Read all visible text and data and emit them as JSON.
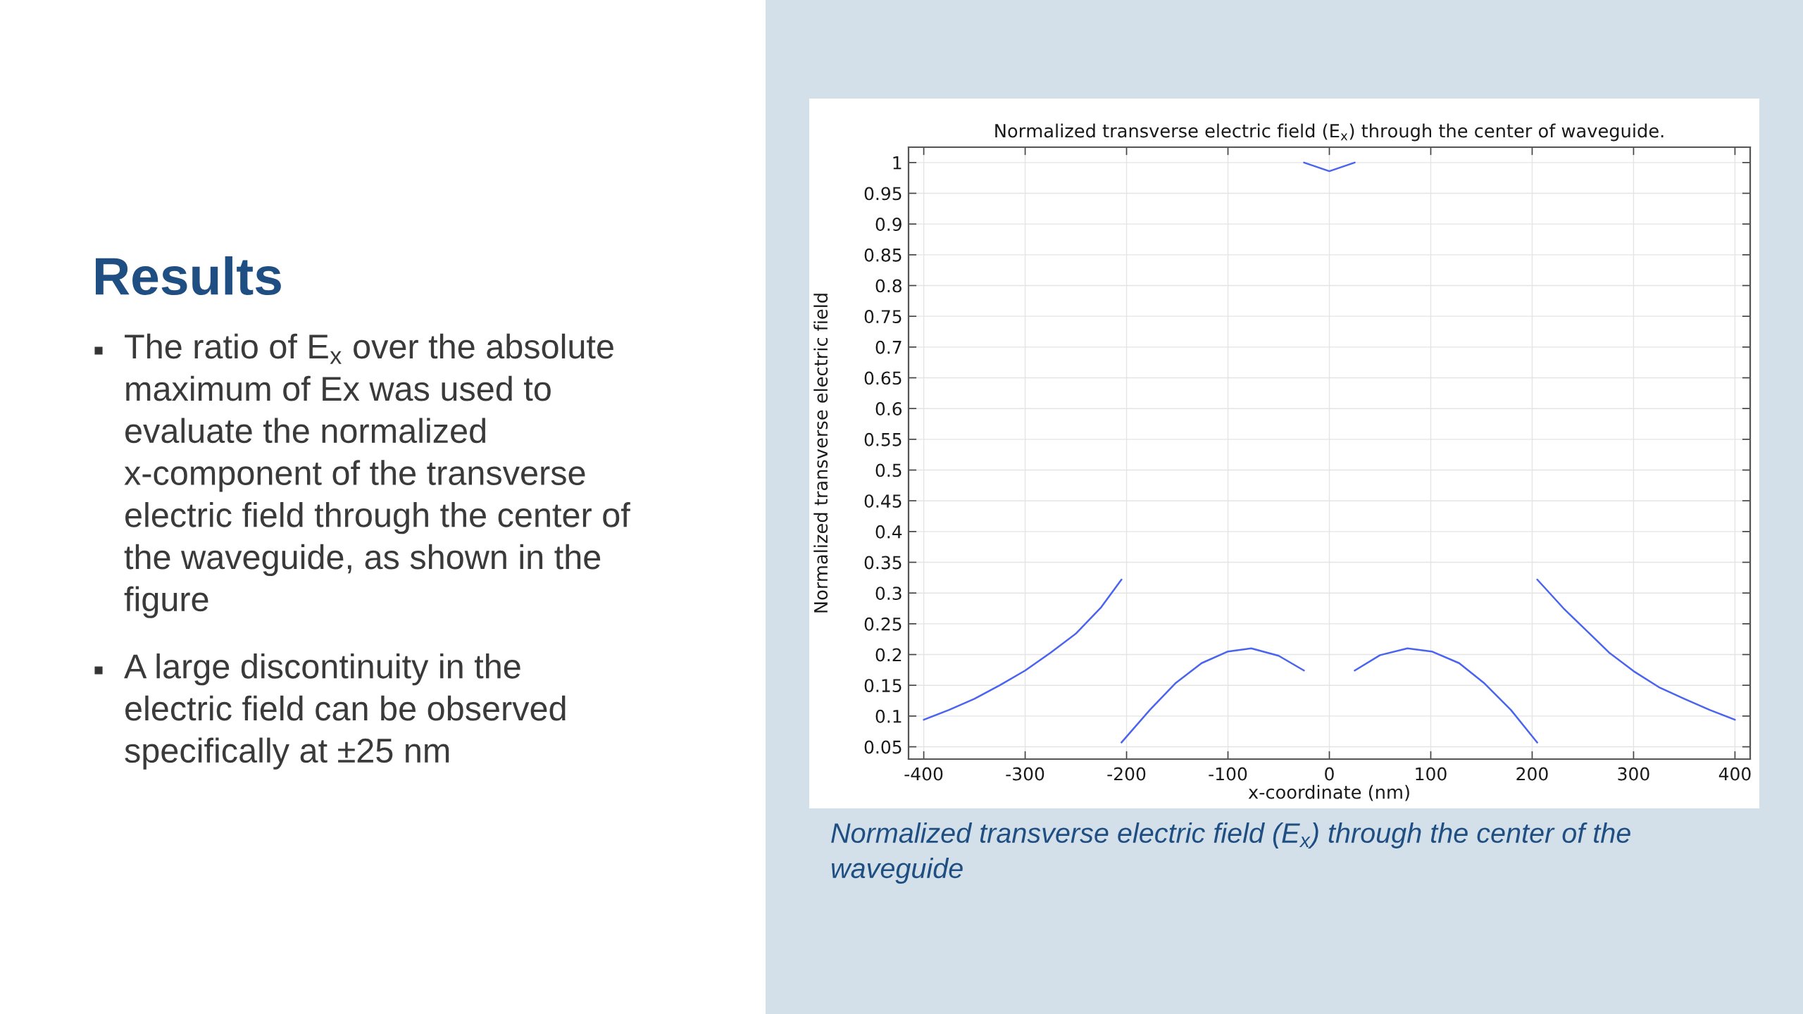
{
  "chart_data": {
    "type": "line",
    "title": "Normalized transverse electric field (E$_{x}$) through the center of waveguide.",
    "xlabel": "x-coordinate (nm)",
    "ylabel": "Normalized transverse electric field",
    "annotations": [
      "Results",
      "The ratio of E$_{x}$ over the absolute maximum of Ex was used to evaluate the normalized x-component of the transverse electric field through the center of the waveguide, as shown in the figure",
      "A large discontinuity in the electric field can be observed specifically at ±25 nm",
      "Normalized transverse electric field (E$_{x}$) through the center of the waveguide"
    ],
    "series": [
      {
        "color": "#4a64f0",
        "x": [
          -400,
          -375,
          -350,
          -325,
          -300,
          -275,
          -250,
          -225,
          -205
        ],
        "values": [
          0.094,
          0.11,
          0.128,
          0.15,
          0.174,
          0.203,
          0.234,
          0.277,
          0.322
        ]
      },
      {
        "color": "#4a64f0",
        "x": [
          -205,
          -177,
          -152,
          -126,
          -100,
          -77,
          -50,
          -25
        ],
        "values": [
          0.057,
          0.11,
          0.153,
          0.186,
          0.205,
          0.21,
          0.198,
          0.174
        ]
      },
      {
        "color": "#4a64f0",
        "x": [
          -25,
          0,
          25
        ],
        "values": [
          1.0,
          0.986,
          1.0
        ]
      },
      {
        "color": "#4a64f0",
        "x": [
          25,
          50,
          77,
          101,
          128,
          153,
          179,
          205
        ],
        "values": [
          0.174,
          0.199,
          0.21,
          0.205,
          0.186,
          0.153,
          0.11,
          0.057
        ]
      },
      {
        "color": "#4a64f0",
        "x": [
          205,
          231,
          256,
          276,
          300,
          326,
          350,
          375,
          400
        ],
        "values": [
          0.322,
          0.275,
          0.235,
          0.203,
          0.173,
          0.146,
          0.128,
          0.11,
          0.094
        ]
      }
    ],
    "xlim": [
      -415,
      415
    ],
    "ylim": [
      0.03,
      1.025
    ],
    "xticks": [
      -400,
      -300,
      -200,
      -100,
      0,
      100,
      200,
      300,
      400
    ],
    "yticks": [
      0.05,
      0.1,
      0.15,
      0.2,
      0.25,
      0.3,
      0.35,
      0.4,
      0.45,
      0.5,
      0.55,
      0.6,
      0.65,
      0.7,
      0.75,
      0.8,
      0.85,
      0.9,
      0.95,
      1
    ],
    "grid": true,
    "line_style": "solid"
  }
}
